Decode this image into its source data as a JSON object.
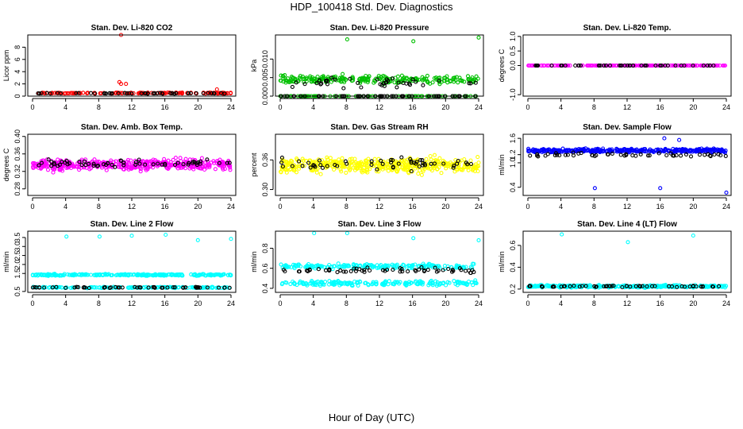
{
  "page": {
    "title": "HDP_100418  Std. Dev. Diagnostics",
    "xlabel": "Hour of Day (UTC)"
  },
  "chart_data": [
    {
      "type": "scatter",
      "title": "Stan. Dev. Li-820 CO2",
      "ylabel": "Licor ppm",
      "xlim": [
        0,
        24
      ],
      "ylim": [
        0,
        10
      ],
      "xticks": [
        "0",
        "4",
        "8",
        "12",
        "16",
        "20",
        "24"
      ],
      "yticks": [
        "0",
        "2",
        "4",
        "6",
        "8"
      ],
      "ytick_values": [
        0,
        2,
        4,
        6,
        8
      ],
      "series": [
        {
          "name": "primary",
          "color": "#ff0000",
          "count": 140,
          "base": 0.5,
          "spread": 0.12,
          "outliers": [
            [
              10.7,
              10.0
            ],
            [
              10.5,
              2.3
            ],
            [
              10.7,
              2.0
            ],
            [
              11.3,
              2.0
            ],
            [
              22.3,
              1.1
            ]
          ]
        },
        {
          "name": "secondary",
          "color": "#000000",
          "count": 48,
          "base": 0.45,
          "spread": 0.08,
          "outliers": []
        }
      ]
    },
    {
      "type": "scatter",
      "title": "Stan. Dev. Li-820 Pressure",
      "ylabel": "kPa",
      "xlim": [
        0,
        24
      ],
      "ylim": [
        0,
        0.0165
      ],
      "xticks": [
        "0",
        "4",
        "8",
        "12",
        "16",
        "20",
        "24"
      ],
      "yticks": [
        "0.000",
        "0.005",
        "0.010"
      ],
      "ytick_values": [
        0,
        0.005,
        0.01
      ],
      "series": [
        {
          "name": "primary",
          "color": "#00c000",
          "count": 240,
          "base": 0.0045,
          "spread": 0.0016,
          "outliers": [
            [
              8.1,
              0.0153
            ],
            [
              16.1,
              0.0148
            ],
            [
              24.0,
              0.0158
            ]
          ]
        },
        {
          "name": "primary-zero",
          "color": "#00c000",
          "count": 80,
          "base": 0.0,
          "spread": 0.0,
          "outliers": []
        },
        {
          "name": "secondary",
          "color": "#000000",
          "count": 40,
          "base": 0.0035,
          "spread": 0.0018,
          "outliers": []
        },
        {
          "name": "secondary-zero",
          "color": "#000000",
          "count": 50,
          "base": 0.0,
          "spread": 0.0,
          "outliers": []
        }
      ]
    },
    {
      "type": "scatter",
      "title": "Stan. Dev. Li-820 Temp.",
      "ylabel": "degrees C",
      "xlim": [
        0,
        24
      ],
      "ylim": [
        -1.05,
        1.05
      ],
      "xticks": [
        "0",
        "4",
        "8",
        "12",
        "16",
        "20",
        "24"
      ],
      "yticks": [
        "-1.0",
        "0.0",
        "0.5",
        "1.0"
      ],
      "ytick_values": [
        -1,
        0,
        0.5,
        1
      ],
      "series": [
        {
          "name": "primary",
          "color": "#ff00ff",
          "count": 200,
          "base": 0.0,
          "spread": 0.0,
          "outliers": []
        },
        {
          "name": "secondary",
          "color": "#000000",
          "count": 45,
          "base": 0.0,
          "spread": 0.0,
          "outliers": []
        }
      ]
    },
    {
      "type": "scatter",
      "title": "Stan. Dev. Amb. Box Temp.",
      "ylabel": "degrees C",
      "xlim": [
        0,
        24
      ],
      "ylim": [
        0.265,
        0.405
      ],
      "xticks": [
        "0",
        "4",
        "8",
        "12",
        "16",
        "20",
        "24"
      ],
      "yticks": [
        "0.28",
        "0.32",
        "0.36",
        "0.40"
      ],
      "ytick_values": [
        0.28,
        0.32,
        0.36,
        0.4
      ],
      "series": [
        {
          "name": "primary",
          "color": "#ff00ff",
          "count": 430,
          "base": 0.335,
          "spread": 0.018,
          "outliers": []
        },
        {
          "name": "secondary",
          "color": "#000000",
          "count": 60,
          "base": 0.338,
          "spread": 0.012,
          "outliers": []
        }
      ]
    },
    {
      "type": "scatter",
      "title": "Stan. Dev. Gas Stream RH",
      "ylabel": "percent",
      "xlim": [
        0,
        24
      ],
      "ylim": [
        0.288,
        0.412
      ],
      "xticks": [
        "0",
        "4",
        "8",
        "12",
        "16",
        "20",
        "24"
      ],
      "yticks": [
        "0.30",
        "0.36"
      ],
      "ytick_values": [
        0.3,
        0.36
      ],
      "series": [
        {
          "name": "primary",
          "color": "#ffff00",
          "count": 430,
          "base": 0.35,
          "spread": 0.022,
          "outliers": []
        },
        {
          "name": "secondary",
          "color": "#000000",
          "count": 55,
          "base": 0.352,
          "spread": 0.02,
          "outliers": []
        }
      ]
    },
    {
      "type": "scatter",
      "title": "Stan. Dev. Sample Flow",
      "ylabel": "ml/min",
      "xlim": [
        0,
        24
      ],
      "ylim": [
        0.2,
        1.7
      ],
      "xticks": [
        "0",
        "4",
        "8",
        "12",
        "16",
        "20",
        "24"
      ],
      "yticks": [
        "0.4",
        "1.0",
        "1.2",
        "1.6"
      ],
      "ytick_values": [
        0.4,
        1.0,
        1.2,
        1.6
      ],
      "series": [
        {
          "name": "primary",
          "color": "#0000ff",
          "count": 380,
          "base": 1.3,
          "spread": 0.06,
          "outliers": [
            [
              8.1,
              0.38
            ],
            [
              16.0,
              0.38
            ],
            [
              24.0,
              0.27
            ],
            [
              16.5,
              1.6
            ],
            [
              18.3,
              1.56
            ]
          ]
        },
        {
          "name": "secondary",
          "color": "#000000",
          "count": 50,
          "base": 1.2,
          "spread": 0.06,
          "outliers": []
        }
      ]
    },
    {
      "type": "scatter",
      "title": "Stan. Dev. Line 2 Flow",
      "ylabel": "ml/min",
      "xlim": [
        0,
        24
      ],
      "ylim": [
        0.45,
        3.85
      ],
      "xticks": [
        "0",
        "4",
        "8",
        "12",
        "16",
        "20",
        "24"
      ],
      "yticks": [
        "0.5",
        "1.5",
        "2.0",
        "2.5",
        "3.0",
        "3.5"
      ],
      "ytick_values": [
        0.5,
        1.5,
        2.0,
        2.5,
        3.0,
        3.5
      ],
      "series": [
        {
          "name": "primary-upper",
          "color": "#00ffff",
          "count": 260,
          "base": 1.42,
          "spread": 0.07,
          "outliers": [
            [
              4.1,
              3.55
            ],
            [
              8.1,
              3.55
            ],
            [
              12.0,
              3.6
            ],
            [
              16.1,
              3.65
            ],
            [
              20.0,
              3.35
            ],
            [
              24.0,
              3.42
            ]
          ]
        },
        {
          "name": "primary-lower",
          "color": "#00ffff",
          "count": 160,
          "base": 0.72,
          "spread": 0.05,
          "outliers": []
        },
        {
          "name": "secondary",
          "color": "#000000",
          "count": 55,
          "base": 0.72,
          "spread": 0.04,
          "outliers": []
        }
      ]
    },
    {
      "type": "scatter",
      "title": "Stan. Dev. Line 3 Flow",
      "ylabel": "ml/min",
      "xlim": [
        0,
        24
      ],
      "ylim": [
        0.36,
        0.97
      ],
      "xticks": [
        "0",
        "4",
        "8",
        "12",
        "16",
        "20",
        "24"
      ],
      "yticks": [
        "0.4",
        "0.6",
        "0.8"
      ],
      "ytick_values": [
        0.4,
        0.6,
        0.8
      ],
      "series": [
        {
          "name": "primary-upper",
          "color": "#00ffff",
          "count": 200,
          "base": 0.62,
          "spread": 0.035,
          "outliers": [
            [
              4.1,
              0.95
            ],
            [
              8.1,
              0.95
            ],
            [
              16.1,
              0.9
            ],
            [
              24.0,
              0.88
            ]
          ]
        },
        {
          "name": "primary-lower",
          "color": "#00ffff",
          "count": 200,
          "base": 0.45,
          "spread": 0.035,
          "outliers": []
        },
        {
          "name": "secondary",
          "color": "#000000",
          "count": 60,
          "base": 0.58,
          "spread": 0.035,
          "outliers": []
        }
      ]
    },
    {
      "type": "scatter",
      "title": "Stan. Dev. Line 4 (LT) Flow",
      "ylabel": "ml/min",
      "xlim": [
        0,
        24
      ],
      "ylim": [
        0.17,
        0.73
      ],
      "xticks": [
        "0",
        "4",
        "8",
        "12",
        "16",
        "20",
        "24"
      ],
      "yticks": [
        "0.2",
        "0.4",
        "0.6"
      ],
      "ytick_values": [
        0.2,
        0.4,
        0.6
      ],
      "series": [
        {
          "name": "primary",
          "color": "#00ffff",
          "count": 330,
          "base": 0.225,
          "spread": 0.015,
          "outliers": [
            [
              4.1,
              0.7
            ],
            [
              12.1,
              0.63
            ],
            [
              20.0,
              0.69
            ]
          ]
        },
        {
          "name": "secondary",
          "color": "#000000",
          "count": 55,
          "base": 0.225,
          "spread": 0.01,
          "outliers": []
        }
      ]
    }
  ]
}
